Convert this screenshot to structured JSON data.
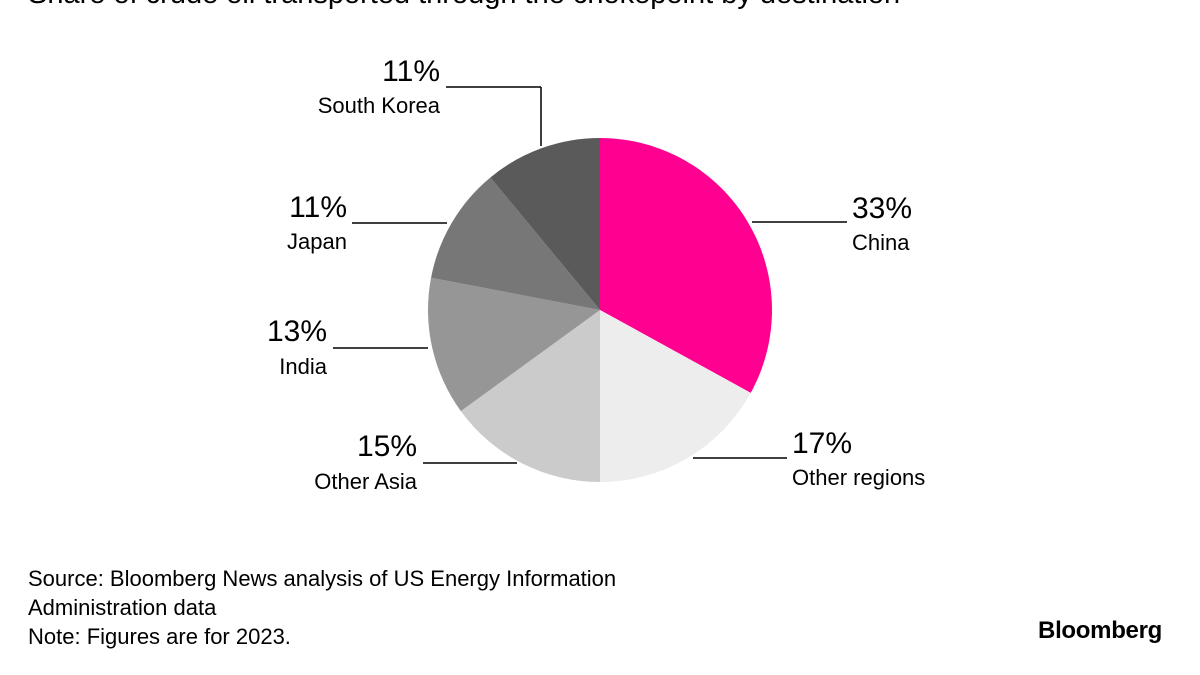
{
  "title": "Share of crude oil transported through the chokepoint by destination",
  "chart_data": {
    "type": "pie",
    "unit": "%",
    "slices": [
      {
        "label": "China",
        "value": 33,
        "value_label": "33%",
        "color": "#FF0090"
      },
      {
        "label": "Other regions",
        "value": 17,
        "value_label": "17%",
        "color": "#EDEDED"
      },
      {
        "label": "Other Asia",
        "value": 15,
        "value_label": "15%",
        "color": "#CBCBCB"
      },
      {
        "label": "India",
        "value": 13,
        "value_label": "13%",
        "color": "#969696"
      },
      {
        "label": "Japan",
        "value": 11,
        "value_label": "11%",
        "color": "#777777"
      },
      {
        "label": "South Korea",
        "value": 11,
        "value_label": "11%",
        "color": "#5A5A5A"
      }
    ]
  },
  "footer": {
    "source_line_1": "Source: Bloomberg News analysis of US Energy Information",
    "source_line_2": "Administration data",
    "note": "Note: Figures are for 2023."
  },
  "brand": "Bloomberg"
}
